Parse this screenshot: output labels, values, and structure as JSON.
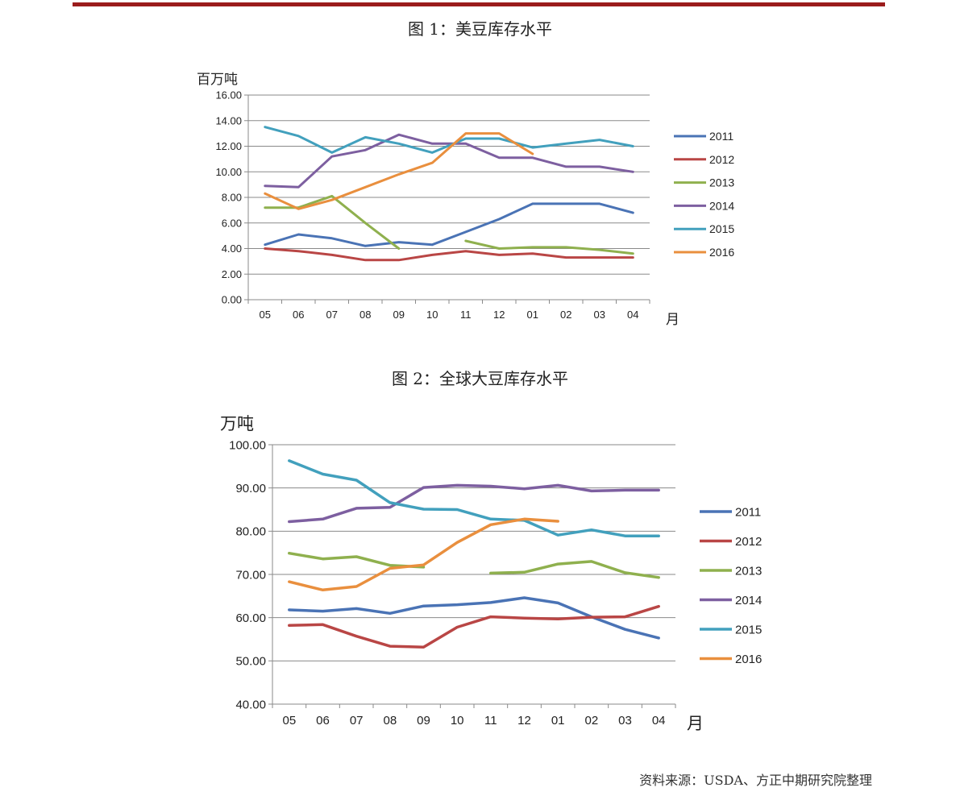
{
  "figures": [
    {
      "title": "图 1：美豆库存水平",
      "chart_data": {
        "type": "line",
        "ylabel": "百万吨",
        "xlabel": "月",
        "categories": [
          "05",
          "06",
          "07",
          "08",
          "09",
          "10",
          "11",
          "12",
          "01",
          "02",
          "03",
          "04"
        ],
        "ylim": [
          0,
          16
        ],
        "ytick_step": 2,
        "ytick_decimals": 2,
        "grid": true,
        "legend": "right",
        "series": [
          {
            "name": "2011",
            "color": "#4a73b5",
            "values": [
              4.3,
              5.1,
              4.8,
              4.2,
              4.5,
              4.3,
              5.3,
              6.3,
              7.5,
              7.5,
              7.5,
              6.8
            ]
          },
          {
            "name": "2012",
            "color": "#b94645",
            "values": [
              4.0,
              3.8,
              3.5,
              3.1,
              3.1,
              3.5,
              3.8,
              3.5,
              3.6,
              3.3,
              3.3,
              3.3
            ]
          },
          {
            "name": "2013",
            "color": "#8fb04e",
            "values": [
              7.2,
              7.2,
              8.1,
              6.0,
              4.0,
              null,
              4.6,
              4.0,
              4.1,
              4.1,
              3.9,
              3.6
            ]
          },
          {
            "name": "2014",
            "color": "#7d5fa0",
            "values": [
              8.9,
              8.8,
              11.2,
              11.7,
              12.9,
              12.2,
              12.2,
              11.1,
              11.1,
              10.4,
              10.4,
              10.0
            ]
          },
          {
            "name": "2015",
            "color": "#42a0bd",
            "values": [
              13.5,
              12.8,
              11.5,
              12.7,
              12.2,
              11.5,
              12.6,
              12.6,
              11.9,
              12.2,
              12.5,
              12.0
            ]
          },
          {
            "name": "2016",
            "color": "#e98f3e",
            "values": [
              8.3,
              7.1,
              7.8,
              8.8,
              9.8,
              10.7,
              13.0,
              13.0,
              11.4,
              null,
              null,
              null
            ]
          }
        ]
      }
    },
    {
      "title": "图 2：全球大豆库存水平",
      "chart_data": {
        "type": "line",
        "ylabel": "万吨",
        "xlabel": "月",
        "categories": [
          "05",
          "06",
          "07",
          "08",
          "09",
          "10",
          "11",
          "12",
          "01",
          "02",
          "03",
          "04"
        ],
        "ylim": [
          40,
          100
        ],
        "ytick_step": 10,
        "ytick_decimals": 2,
        "grid": true,
        "legend": "right",
        "series": [
          {
            "name": "2011",
            "color": "#4a73b5",
            "values": [
              61.8,
              61.5,
              62.1,
              61.0,
              62.7,
              63.0,
              63.5,
              64.6,
              63.4,
              60.2,
              57.3,
              55.3
            ]
          },
          {
            "name": "2012",
            "color": "#b94645",
            "values": [
              58.2,
              58.4,
              55.7,
              53.4,
              53.2,
              57.8,
              60.2,
              59.9,
              59.7,
              60.1,
              60.2,
              62.6
            ]
          },
          {
            "name": "2013",
            "color": "#8fb04e",
            "values": [
              74.9,
              73.6,
              74.1,
              72.1,
              71.7,
              null,
              70.3,
              70.5,
              72.4,
              73.0,
              70.4,
              69.3
            ]
          },
          {
            "name": "2014",
            "color": "#7d5fa0",
            "values": [
              82.2,
              82.8,
              85.3,
              85.5,
              90.1,
              90.6,
              90.4,
              89.8,
              90.6,
              89.3,
              89.5,
              89.5
            ]
          },
          {
            "name": "2015",
            "color": "#42a0bd",
            "values": [
              96.3,
              93.2,
              91.8,
              86.6,
              85.1,
              85.0,
              82.8,
              82.5,
              79.1,
              80.3,
              78.9,
              78.9
            ]
          },
          {
            "name": "2016",
            "color": "#e98f3e",
            "values": [
              68.3,
              66.4,
              67.2,
              71.4,
              72.2,
              77.4,
              81.5,
              82.8,
              82.3,
              null,
              null,
              null
            ]
          }
        ]
      }
    }
  ],
  "source": "资料来源：USDA、方正中期研究院整理"
}
